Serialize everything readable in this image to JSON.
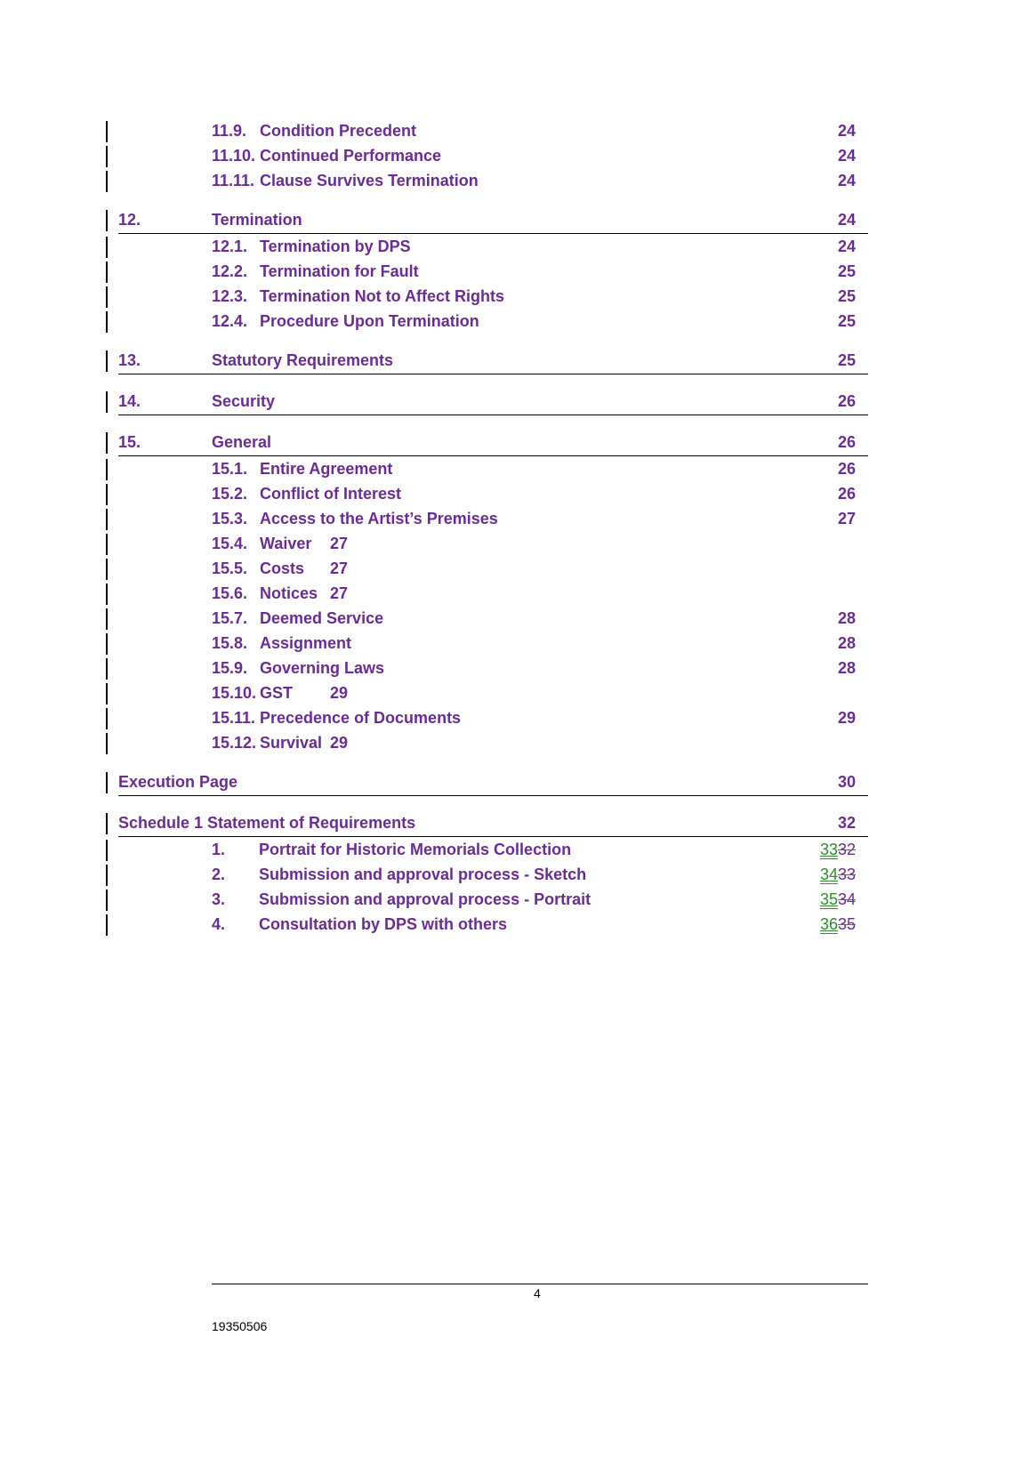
{
  "toc": [
    {
      "type": "sub",
      "num": "11.9.",
      "title": "Condition Precedent",
      "page": "24"
    },
    {
      "type": "sub",
      "num": "11.10.",
      "title": "Continued Performance",
      "page": "24"
    },
    {
      "type": "sub",
      "num": "11.11.",
      "title": "Clause Survives Termination",
      "page": "24"
    },
    {
      "type": "main",
      "num": "12.",
      "title": "Termination",
      "page": "24"
    },
    {
      "type": "sub",
      "num": "12.1.",
      "title": "Termination by DPS",
      "page": "24"
    },
    {
      "type": "sub",
      "num": "12.2.",
      "title": "Termination for Fault",
      "page": "25"
    },
    {
      "type": "sub",
      "num": "12.3.",
      "title": "Termination Not to Affect Rights",
      "page": "25"
    },
    {
      "type": "sub",
      "num": "12.4.",
      "title": "Procedure Upon Termination",
      "page": "25"
    },
    {
      "type": "main",
      "num": "13.",
      "title": "Statutory Requirements",
      "page": "25"
    },
    {
      "type": "main",
      "num": "14.",
      "title": "Security",
      "page": "26"
    },
    {
      "type": "main",
      "num": "15.",
      "title": "General",
      "page": "26"
    },
    {
      "type": "sub",
      "num": "15.1.",
      "title": "Entire Agreement",
      "page": "26"
    },
    {
      "type": "sub",
      "num": "15.2.",
      "title": "Conflict of Interest",
      "page": "26"
    },
    {
      "type": "sub",
      "num": "15.3.",
      "title": "Access to the Artist’s Premises",
      "page": "27"
    },
    {
      "type": "sub-inline",
      "num": "15.4.",
      "title": "Waiver",
      "page": "27"
    },
    {
      "type": "sub-inline",
      "num": "15.5.",
      "title": "Costs",
      "page": "27"
    },
    {
      "type": "sub-inline",
      "num": "15.6.",
      "title": "Notices",
      "page": "27"
    },
    {
      "type": "sub",
      "num": "15.7.",
      "title": "Deemed Service",
      "page": "28"
    },
    {
      "type": "sub",
      "num": "15.8.",
      "title": "Assignment",
      "page": "28"
    },
    {
      "type": "sub",
      "num": "15.9.",
      "title": "Governing Laws",
      "page": "28"
    },
    {
      "type": "sub-inline",
      "num": "15.10.",
      "title": "GST",
      "page": "29"
    },
    {
      "type": "sub",
      "num": "15.11.",
      "title": "Precedence of Documents",
      "page": "29"
    },
    {
      "type": "sub-inline",
      "num": "15.12.",
      "title": "Survival",
      "page": "29"
    },
    {
      "type": "main-full",
      "title": "Execution Page",
      "page": "30"
    },
    {
      "type": "main-full",
      "title": "Schedule 1 Statement of Requirements",
      "page": "32"
    },
    {
      "type": "sched",
      "num": "1.",
      "title": "Portrait for Historic Memorials Collection",
      "page_inserted": "33",
      "page_deleted": "32"
    },
    {
      "type": "sched",
      "num": "2.",
      "title": "Submission and approval process - Sketch",
      "page_inserted": "34",
      "page_deleted": "33"
    },
    {
      "type": "sched",
      "num": "3.",
      "title": "Submission and approval process - Portrait",
      "page_inserted": "35",
      "page_deleted": "34"
    },
    {
      "type": "sched",
      "num": "4.",
      "title": "Consultation by DPS with others",
      "page_inserted": "36",
      "page_deleted": "35"
    }
  ],
  "footer": {
    "page_number": "4",
    "doc_id": "19350506"
  },
  "colors": {
    "heading": "#6a2c91",
    "inserted": "#2e8b2e",
    "revision_bar": "#000000"
  }
}
